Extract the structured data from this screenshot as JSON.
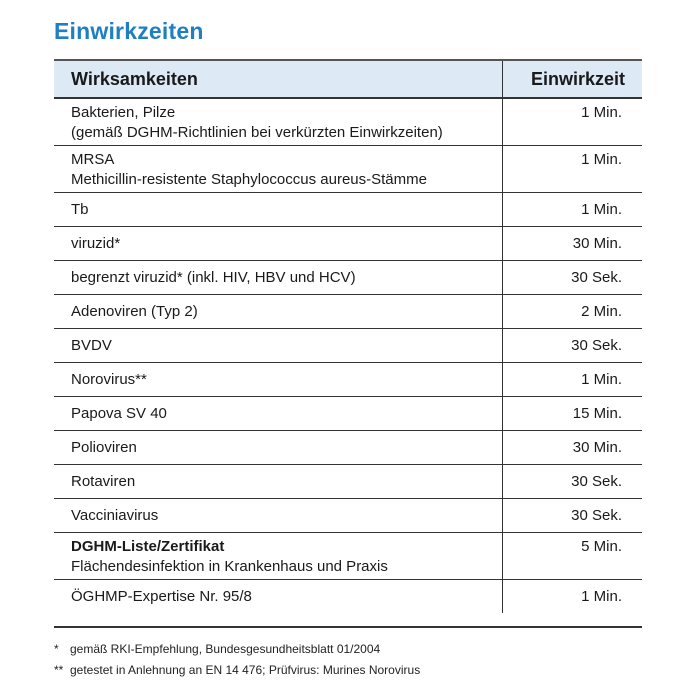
{
  "title": "Einwirkzeiten",
  "table": {
    "headers": [
      "Wirksamkeiten",
      "Einwirkzeit"
    ],
    "rows": [
      {
        "line1": "Bakterien, Pilze",
        "line2": "(gemäß DGHM-Richtlinien bei verkürzten Einwirkzeiten)",
        "time": "1 Min."
      },
      {
        "line1": "MRSA",
        "line2": "Methicillin-resistente Staphylococcus aureus-Stämme",
        "time": "1 Min."
      },
      {
        "line1": "Tb",
        "time": "1 Min."
      },
      {
        "line1": "viruzid*",
        "time": "30 Min."
      },
      {
        "line1": "begrenzt viruzid* (inkl. HIV, HBV und HCV)",
        "time": "30 Sek."
      },
      {
        "line1": "Adenoviren (Typ 2)",
        "time": "2 Min."
      },
      {
        "line1": "BVDV",
        "time": "30 Sek."
      },
      {
        "line1": "Norovirus**",
        "time": "1 Min."
      },
      {
        "line1": "Papova SV 40",
        "time": "15 Min."
      },
      {
        "line1": "Polioviren",
        "time": "30 Min."
      },
      {
        "line1": "Rotaviren",
        "time": "30 Sek."
      },
      {
        "line1": "Vacciniavirus",
        "time": "30 Sek."
      },
      {
        "line1": "DGHM-Liste/Zertifikat",
        "line2": "Flächendesinfektion in Krankenhaus und Praxis",
        "time": "5 Min."
      },
      {
        "line1": "ÖGHMP-Expertise Nr. 95/8",
        "time": "1 Min."
      }
    ]
  },
  "footnotes": [
    {
      "marker": "*",
      "text": "gemäß RKI-Empfehlung, Bundesgesundheitsblatt 01/2004"
    },
    {
      "marker": "**",
      "text": "getestet in Anlehnung an EN 14 476; Prüfvirus: Murines Norovirus"
    }
  ]
}
